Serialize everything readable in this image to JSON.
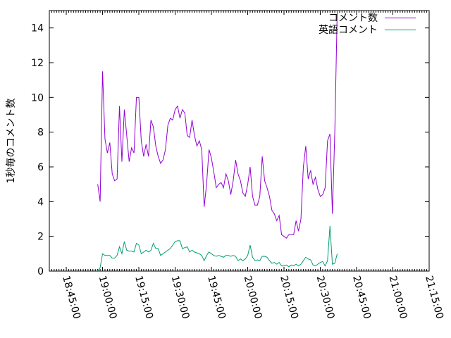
{
  "chart_data": {
    "type": "line",
    "title": "",
    "xlabel": "",
    "ylabel": "1秒毎のコメント数",
    "ylim": [
      0,
      15
    ],
    "yticks": [
      0,
      2,
      4,
      6,
      8,
      10,
      12,
      14
    ],
    "xlim": [
      "18:38:00",
      "21:15:00"
    ],
    "xticks": [
      "18:45:00",
      "19:00:00",
      "19:15:00",
      "19:30:00",
      "19:45:00",
      "20:00:00",
      "20:15:00",
      "20:30:00",
      "20:45:00",
      "21:00:00",
      "21:15:00"
    ],
    "x_format": "time",
    "grid": false,
    "legend_position": "top-right",
    "series": [
      {
        "name": "コメント数",
        "color": "#9400d3",
        "points": [
          [
            "18:58:00",
            5.0
          ],
          [
            "18:59:00",
            4.0
          ],
          [
            "19:00:00",
            11.5
          ],
          [
            "19:01:00",
            7.6
          ],
          [
            "19:02:00",
            6.8
          ],
          [
            "19:03:00",
            7.4
          ],
          [
            "19:04:00",
            5.6
          ],
          [
            "19:05:00",
            5.2
          ],
          [
            "19:06:00",
            5.3
          ],
          [
            "19:07:00",
            9.5
          ],
          [
            "19:08:00",
            6.3
          ],
          [
            "19:09:00",
            9.3
          ],
          [
            "19:10:00",
            7.8
          ],
          [
            "19:11:00",
            6.3
          ],
          [
            "19:12:00",
            7.1
          ],
          [
            "19:13:00",
            6.8
          ],
          [
            "19:14:00",
            10.0
          ],
          [
            "19:15:00",
            10.0
          ],
          [
            "19:16:00",
            7.5
          ],
          [
            "19:17:00",
            6.6
          ],
          [
            "19:18:00",
            7.3
          ],
          [
            "19:19:00",
            6.6
          ],
          [
            "19:20:00",
            8.7
          ],
          [
            "19:21:00",
            8.3
          ],
          [
            "19:22:00",
            7.2
          ],
          [
            "19:23:00",
            6.6
          ],
          [
            "19:24:00",
            6.2
          ],
          [
            "19:25:00",
            6.4
          ],
          [
            "19:26:00",
            7.0
          ],
          [
            "19:27:00",
            8.4
          ],
          [
            "19:28:00",
            8.8
          ],
          [
            "19:29:00",
            8.7
          ],
          [
            "19:30:00",
            9.3
          ],
          [
            "19:31:00",
            9.5
          ],
          [
            "19:32:00",
            8.8
          ],
          [
            "19:33:00",
            9.3
          ],
          [
            "19:34:00",
            9.1
          ],
          [
            "19:35:00",
            7.8
          ],
          [
            "19:36:00",
            7.7
          ],
          [
            "19:37:00",
            8.7
          ],
          [
            "19:38:00",
            7.8
          ],
          [
            "19:39:00",
            7.2
          ],
          [
            "19:40:00",
            7.5
          ],
          [
            "19:41:00",
            7.0
          ],
          [
            "19:42:00",
            3.7
          ],
          [
            "19:43:00",
            5.0
          ],
          [
            "19:44:00",
            7.0
          ],
          [
            "19:45:00",
            6.5
          ],
          [
            "19:46:00",
            5.7
          ],
          [
            "19:47:00",
            4.8
          ],
          [
            "19:48:00",
            5.0
          ],
          [
            "19:49:00",
            5.1
          ],
          [
            "19:50:00",
            4.8
          ],
          [
            "19:51:00",
            5.6
          ],
          [
            "19:52:00",
            5.2
          ],
          [
            "19:53:00",
            4.4
          ],
          [
            "19:54:00",
            5.2
          ],
          [
            "19:55:00",
            6.4
          ],
          [
            "19:56:00",
            5.6
          ],
          [
            "19:57:00",
            5.2
          ],
          [
            "19:58:00",
            4.5
          ],
          [
            "19:59:00",
            4.3
          ],
          [
            "20:00:00",
            5.0
          ],
          [
            "20:01:00",
            6.0
          ],
          [
            "20:02:00",
            4.3
          ],
          [
            "20:03:00",
            3.8
          ],
          [
            "20:04:00",
            3.8
          ],
          [
            "20:05:00",
            4.3
          ],
          [
            "20:06:00",
            6.6
          ],
          [
            "20:07:00",
            5.2
          ],
          [
            "20:08:00",
            4.8
          ],
          [
            "20:09:00",
            4.3
          ],
          [
            "20:10:00",
            3.5
          ],
          [
            "20:11:00",
            3.3
          ],
          [
            "20:12:00",
            2.9
          ],
          [
            "20:13:00",
            3.2
          ],
          [
            "20:14:00",
            2.1
          ],
          [
            "20:15:00",
            2.0
          ],
          [
            "20:16:00",
            1.9
          ],
          [
            "20:17:00",
            2.1
          ],
          [
            "20:18:00",
            2.1
          ],
          [
            "20:19:00",
            2.1
          ],
          [
            "20:20:00",
            2.9
          ],
          [
            "20:21:00",
            2.3
          ],
          [
            "20:22:00",
            3.0
          ],
          [
            "20:23:00",
            6.0
          ],
          [
            "20:24:00",
            7.2
          ],
          [
            "20:25:00",
            5.3
          ],
          [
            "20:26:00",
            5.8
          ],
          [
            "20:27:00",
            5.0
          ],
          [
            "20:28:00",
            5.4
          ],
          [
            "20:29:00",
            4.7
          ],
          [
            "20:30:00",
            4.3
          ],
          [
            "20:31:00",
            4.4
          ],
          [
            "20:32:00",
            4.8
          ],
          [
            "20:33:00",
            7.5
          ],
          [
            "20:34:00",
            7.9
          ],
          [
            "20:35:00",
            3.3
          ],
          [
            "20:36:00",
            8.0
          ],
          [
            "20:37:00",
            15.0
          ]
        ]
      },
      {
        "name": "英語コメント",
        "color": "#009e73",
        "points": [
          [
            "18:58:00",
            0.0
          ],
          [
            "18:59:00",
            0.2
          ],
          [
            "19:00:00",
            1.0
          ],
          [
            "19:01:00",
            0.9
          ],
          [
            "19:02:00",
            0.9
          ],
          [
            "19:03:00",
            0.9
          ],
          [
            "19:04:00",
            0.75
          ],
          [
            "19:05:00",
            0.75
          ],
          [
            "19:06:00",
            0.9
          ],
          [
            "19:07:00",
            1.4
          ],
          [
            "19:08:00",
            1.0
          ],
          [
            "19:09:00",
            1.7
          ],
          [
            "19:10:00",
            1.2
          ],
          [
            "19:11:00",
            1.15
          ],
          [
            "19:12:00",
            1.15
          ],
          [
            "19:13:00",
            1.1
          ],
          [
            "19:14:00",
            1.6
          ],
          [
            "19:15:00",
            1.5
          ],
          [
            "19:16:00",
            1.0
          ],
          [
            "19:17:00",
            1.1
          ],
          [
            "19:18:00",
            1.2
          ],
          [
            "19:19:00",
            1.1
          ],
          [
            "19:20:00",
            1.2
          ],
          [
            "19:21:00",
            1.6
          ],
          [
            "19:22:00",
            1.3
          ],
          [
            "19:23:00",
            1.3
          ],
          [
            "19:24:00",
            0.9
          ],
          [
            "19:25:00",
            1.0
          ],
          [
            "19:26:00",
            1.1
          ],
          [
            "19:27:00",
            1.2
          ],
          [
            "19:28:00",
            1.3
          ],
          [
            "19:29:00",
            1.5
          ],
          [
            "19:30:00",
            1.7
          ],
          [
            "19:31:00",
            1.75
          ],
          [
            "19:32:00",
            1.75
          ],
          [
            "19:33:00",
            1.3
          ],
          [
            "19:34:00",
            1.35
          ],
          [
            "19:35:00",
            1.4
          ],
          [
            "19:36:00",
            1.1
          ],
          [
            "19:37:00",
            1.2
          ],
          [
            "19:38:00",
            1.1
          ],
          [
            "19:39:00",
            1.05
          ],
          [
            "19:40:00",
            1.0
          ],
          [
            "19:41:00",
            0.9
          ],
          [
            "19:42:00",
            0.6
          ],
          [
            "19:43:00",
            0.9
          ],
          [
            "19:44:00",
            1.1
          ],
          [
            "19:45:00",
            1.0
          ],
          [
            "19:46:00",
            0.9
          ],
          [
            "19:47:00",
            0.85
          ],
          [
            "19:48:00",
            0.9
          ],
          [
            "19:49:00",
            0.85
          ],
          [
            "19:50:00",
            0.8
          ],
          [
            "19:51:00",
            0.9
          ],
          [
            "19:52:00",
            0.9
          ],
          [
            "19:53:00",
            0.85
          ],
          [
            "19:54:00",
            0.9
          ],
          [
            "19:55:00",
            0.85
          ],
          [
            "19:56:00",
            0.6
          ],
          [
            "19:57:00",
            0.7
          ],
          [
            "19:58:00",
            0.6
          ],
          [
            "19:59:00",
            0.7
          ],
          [
            "20:00:00",
            0.9
          ],
          [
            "20:01:00",
            1.5
          ],
          [
            "20:02:00",
            0.8
          ],
          [
            "20:03:00",
            0.6
          ],
          [
            "20:04:00",
            0.65
          ],
          [
            "20:05:00",
            0.6
          ],
          [
            "20:06:00",
            0.85
          ],
          [
            "20:07:00",
            0.85
          ],
          [
            "20:08:00",
            0.8
          ],
          [
            "20:09:00",
            0.6
          ],
          [
            "20:10:00",
            0.45
          ],
          [
            "20:11:00",
            0.5
          ],
          [
            "20:12:00",
            0.4
          ],
          [
            "20:13:00",
            0.5
          ],
          [
            "20:14:00",
            0.3
          ],
          [
            "20:15:00",
            0.3
          ],
          [
            "20:16:00",
            0.35
          ],
          [
            "20:17:00",
            0.25
          ],
          [
            "20:18:00",
            0.35
          ],
          [
            "20:19:00",
            0.3
          ],
          [
            "20:20:00",
            0.4
          ],
          [
            "20:21:00",
            0.3
          ],
          [
            "20:22:00",
            0.4
          ],
          [
            "20:23:00",
            0.6
          ],
          [
            "20:24:00",
            0.8
          ],
          [
            "20:25:00",
            0.7
          ],
          [
            "20:26:00",
            0.65
          ],
          [
            "20:27:00",
            0.35
          ],
          [
            "20:28:00",
            0.3
          ],
          [
            "20:29:00",
            0.4
          ],
          [
            "20:30:00",
            0.5
          ],
          [
            "20:31:00",
            0.55
          ],
          [
            "20:32:00",
            0.3
          ],
          [
            "20:33:00",
            0.6
          ],
          [
            "20:34:00",
            2.6
          ],
          [
            "20:35:00",
            0.4
          ],
          [
            "20:36:00",
            0.45
          ],
          [
            "20:37:00",
            1.0
          ]
        ]
      }
    ]
  }
}
